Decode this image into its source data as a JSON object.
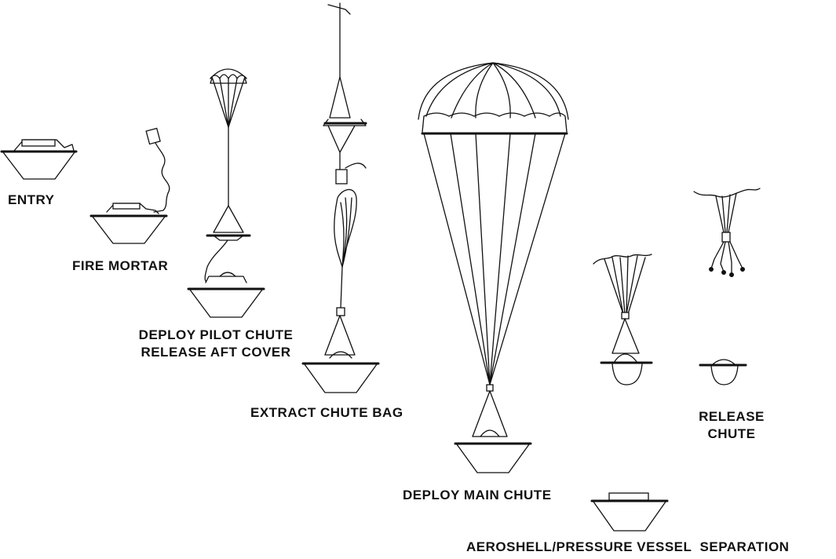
{
  "stages": {
    "entry": "ENTRY",
    "fire_mortar": "FIRE MORTAR",
    "deploy_pilot_line1": "DEPLOY PILOT CHUTE",
    "deploy_pilot_line2": "RELEASE AFT COVER",
    "extract_bag": "EXTRACT CHUTE BAG",
    "deploy_main": "DEPLOY MAIN CHUTE",
    "release_line1": "RELEASE",
    "release_line2": "CHUTE",
    "separation": "AEROSHELL/PRESSURE VESSEL  SEPARATION"
  }
}
